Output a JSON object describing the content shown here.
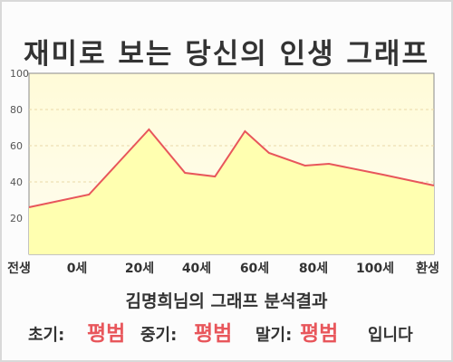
{
  "title": "재미로 보는 당신의 인생 그래프",
  "subtitle": "김명희님의 그래프 분석결과",
  "result": {
    "early_label": "초기:",
    "early_value": "평범",
    "middle_label": "중기:",
    "middle_value": "평범",
    "late_label": "말기:",
    "late_value": "평범",
    "suffix": "입니다"
  },
  "colors": {
    "plot_fill_top": "#fffbd8",
    "area_fill": "#ffffb0",
    "line": "#e8565b",
    "axis_text": "#555555"
  },
  "chart_data": {
    "type": "area",
    "title": "재미로 보는 당신의 인생 그래프",
    "xlabel": "",
    "ylabel": "",
    "ylim": [
      0,
      100
    ],
    "yticks": [
      20,
      40,
      60,
      80,
      100
    ],
    "grid": true,
    "x_tick_labels": [
      "전생",
      "0세",
      "20세",
      "40세",
      "60세",
      "80세",
      "100세",
      "환생"
    ],
    "x": [
      -20,
      0,
      20,
      32,
      42,
      52,
      60,
      72,
      80,
      98,
      115
    ],
    "values": [
      26,
      33,
      69,
      45,
      43,
      68,
      56,
      49,
      50,
      44,
      38
    ]
  }
}
